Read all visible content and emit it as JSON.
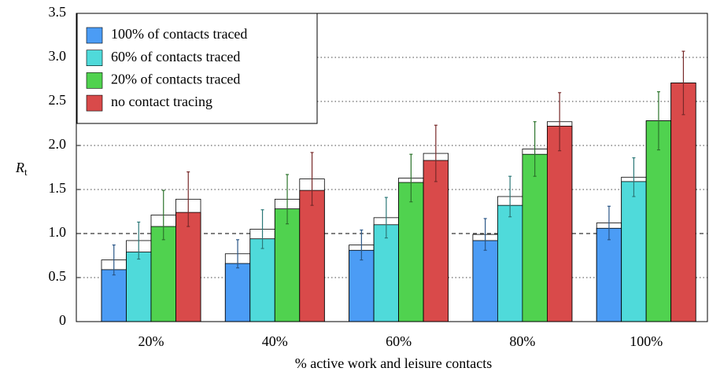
{
  "chart_data": {
    "type": "bar",
    "xlabel": "% active work and leisure contacts",
    "ylabel": "R",
    "ylabel_sub": "t",
    "categories": [
      "20%",
      "40%",
      "60%",
      "80%",
      "100%"
    ],
    "series": [
      {
        "name": "100% of contacts traced",
        "color": "#4b9cf5",
        "values": [
          0.59,
          0.66,
          0.81,
          0.92,
          1.06
        ],
        "values_total": [
          0.7,
          0.77,
          0.87,
          0.99,
          1.12
        ],
        "errors": [
          0.17,
          0.16,
          0.17,
          0.18,
          0.19
        ]
      },
      {
        "name": "60% of contacts traced",
        "color": "#4fdada",
        "values": [
          0.79,
          0.94,
          1.1,
          1.32,
          1.59
        ],
        "values_total": [
          0.92,
          1.05,
          1.18,
          1.42,
          1.64
        ],
        "errors": [
          0.21,
          0.22,
          0.23,
          0.23,
          0.22
        ]
      },
      {
        "name": "20% of contacts traced",
        "color": "#50d24f",
        "values": [
          1.08,
          1.28,
          1.58,
          1.9,
          2.28
        ],
        "values_total": [
          1.21,
          1.39,
          1.63,
          1.96,
          2.28
        ],
        "errors": [
          0.28,
          0.28,
          0.27,
          0.31,
          0.33
        ]
      },
      {
        "name": "no contact tracing",
        "color": "#d94a4a",
        "values": [
          1.24,
          1.49,
          1.83,
          2.22,
          2.71
        ],
        "values_total": [
          1.39,
          1.62,
          1.91,
          2.27,
          2.71
        ],
        "errors": [
          0.31,
          0.3,
          0.32,
          0.33,
          0.36
        ]
      }
    ],
    "ylim": [
      0,
      3.5
    ],
    "yticks": [
      0,
      0.5,
      {
        "value": 1,
        "label": "1.0"
      },
      1.5,
      {
        "value": 2,
        "label": "2.0"
      },
      2.5,
      {
        "value": 3,
        "label": "3.0"
      },
      3.5
    ],
    "grid": true,
    "hline": 1,
    "legend": "upper-left"
  }
}
